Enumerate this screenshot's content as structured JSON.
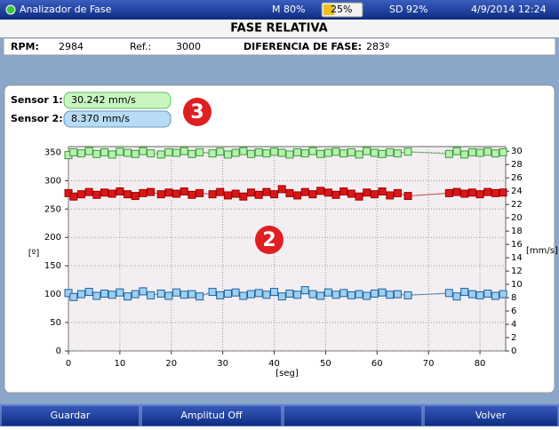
{
  "status": {
    "app": "Analizador de Fase",
    "memory": "M 80%",
    "battery": "25%",
    "sd": "SD 92%",
    "datetime": "4/9/2014 12:24"
  },
  "title": "FASE RELATIVA",
  "info": {
    "rpm_label": "RPM:",
    "rpm": "2984",
    "ref_label": "Ref.:",
    "ref": "3000",
    "phase_label": "DIFERENCIA DE FASE:",
    "phase": "283º"
  },
  "sensors": [
    {
      "label": "Sensor 1:",
      "value": "30.242 mm/s"
    },
    {
      "label": "Sensor 2:",
      "value": "8.370 mm/s"
    }
  ],
  "annotations": [
    "3",
    "2"
  ],
  "buttons": [
    "Guardar",
    "Amplitud Off",
    "Volver"
  ],
  "chart_data": {
    "type": "line",
    "y_label": "[º]",
    "y2_label": "[mm/s]",
    "x_label": "[seg]",
    "xlim": [
      0,
      85
    ],
    "xticks": [
      0,
      10,
      20,
      30,
      40,
      50,
      60,
      70,
      80
    ],
    "ylim": [
      0,
      360
    ],
    "yticks": [
      0,
      50,
      100,
      150,
      200,
      250,
      300,
      350
    ],
    "y2lim": [
      0,
      30.7
    ],
    "y2ticks": [
      0,
      2,
      4,
      6,
      8,
      10,
      12,
      14,
      16,
      18,
      20,
      22,
      24,
      26,
      28,
      30
    ],
    "grid": true,
    "x": [
      0,
      1,
      2.5,
      4,
      5.5,
      7,
      8.5,
      10,
      11.5,
      13,
      14.5,
      16,
      18,
      19.5,
      21,
      22.5,
      24,
      25.5,
      28,
      29.5,
      31,
      32.5,
      34,
      35.5,
      37,
      38.5,
      40,
      41.5,
      43,
      44.5,
      46,
      47.5,
      49,
      50.5,
      52,
      53.5,
      55,
      56.5,
      58,
      59.5,
      61,
      62.5,
      64,
      66,
      74,
      75.5,
      77,
      78.5,
      80,
      81.5,
      83,
      84.5
    ],
    "series": [
      {
        "color": "#3a9a3a",
        "fill": "#b8f0b0",
        "values": [
          345,
          350,
          348,
          352,
          347,
          350,
          346,
          351,
          349,
          347,
          352,
          348,
          346,
          350,
          349,
          352,
          347,
          350,
          348,
          351,
          346,
          349,
          352,
          347,
          350,
          348,
          351,
          349,
          346,
          350,
          348,
          352,
          347,
          349,
          351,
          348,
          350,
          346,
          352,
          349,
          347,
          350,
          348,
          351,
          347,
          352,
          346,
          350,
          349,
          351,
          348,
          350
        ]
      },
      {
        "color": "#a00000",
        "fill": "#d81818",
        "values": [
          278,
          272,
          276,
          280,
          275,
          279,
          277,
          281,
          276,
          273,
          278,
          280,
          276,
          279,
          277,
          281,
          275,
          278,
          276,
          280,
          274,
          277,
          272,
          279,
          275,
          280,
          276,
          285,
          278,
          274,
          280,
          276,
          282,
          279,
          275,
          281,
          277,
          272,
          279,
          276,
          281,
          274,
          278,
          273,
          278,
          280,
          277,
          279,
          276,
          280,
          278,
          279
        ]
      },
      {
        "color": "#2060a0",
        "fill": "#9fd0f0",
        "values": [
          102,
          95,
          100,
          104,
          97,
          101,
          99,
          103,
          96,
          100,
          105,
          98,
          101,
          97,
          103,
          99,
          100,
          96,
          104,
          98,
          101,
          103,
          97,
          100,
          102,
          99,
          104,
          96,
          101,
          99,
          107,
          100,
          97,
          103,
          99,
          102,
          98,
          100,
          97,
          101,
          103,
          99,
          100,
          98,
          102,
          96,
          104,
          100,
          98,
          101,
          97,
          100
        ]
      }
    ]
  }
}
